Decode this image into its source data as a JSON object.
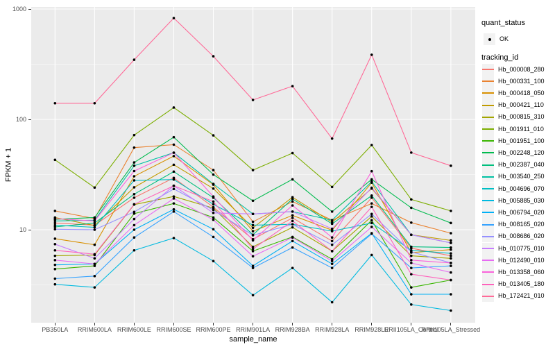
{
  "figure": {
    "background": "#FFFFFF",
    "panel_background": "#EBEBEB",
    "grid_color": "#FFFFFF",
    "tick_color": "#333333",
    "tick_label_color": "#4D4D4D"
  },
  "axes": {
    "x": {
      "label": "sample_name"
    },
    "y": {
      "label": "FPKM + 1",
      "scale": "log10",
      "ticks": [
        {
          "label": "1000",
          "value": 1000
        },
        {
          "label": "100",
          "value": 100
        },
        {
          "label": "10",
          "value": 10
        }
      ]
    }
  },
  "legend": {
    "quant_status": {
      "title": "quant_status",
      "value": "OK",
      "symbol": "black-point"
    },
    "tracking_id": {
      "title": "tracking_id"
    }
  },
  "chart_data": {
    "type": "line",
    "title": "",
    "xlabel": "sample_name",
    "ylabel": "FPKM + 1",
    "y_scale": "log10",
    "ylim": [
      1.4,
      1050
    ],
    "grid": true,
    "legend_position": "right",
    "point_color": "#000000",
    "categories": [
      "PB350LA",
      "RRIM600LA",
      "RRIM600LE",
      "RRIM600SE",
      "RRIM600PE",
      "RRIM901LA",
      "RRIM928BA",
      "RRIM928LA",
      "RRIM928LE",
      "RRII105LA_Control",
      "RRII105LA_Stressed"
    ],
    "series": [
      {
        "name": "Hb_000008_280",
        "color": "#F8766D",
        "values": [
          11.5,
          11.0,
          19.5,
          29.5,
          16.0,
          8.2,
          12.8,
          7.9,
          19.5,
          6.8,
          5.8
        ]
      },
      {
        "name": "Hb_000331_100",
        "color": "#EA8331",
        "values": [
          14.8,
          12.6,
          55.5,
          59.0,
          34.7,
          11.8,
          18.0,
          12.2,
          17.3,
          11.6,
          9.3
        ]
      },
      {
        "name": "Hb_000418_050",
        "color": "#D89000",
        "values": [
          8.3,
          7.3,
          30.5,
          46.5,
          25.6,
          9.7,
          13.5,
          9.9,
          26.7,
          6.2,
          6.6
        ]
      },
      {
        "name": "Hb_000421_110",
        "color": "#C09B00",
        "values": [
          12.9,
          10.9,
          24.2,
          38.8,
          23.6,
          10.4,
          19.7,
          11.7,
          23.6,
          9.0,
          8.0
        ]
      },
      {
        "name": "Hb_000815_310",
        "color": "#A3A500",
        "values": [
          5.8,
          5.9,
          16.9,
          20.0,
          15.7,
          7.0,
          10.5,
          6.4,
          13.2,
          5.8,
          5.5
        ]
      },
      {
        "name": "Hb_001911_010",
        "color": "#7CAE00",
        "values": [
          43.0,
          24.1,
          72.0,
          128.0,
          71.6,
          34.7,
          49.5,
          24.4,
          58.5,
          18.8,
          14.8
        ]
      },
      {
        "name": "Hb_001951_100",
        "color": "#39B600",
        "values": [
          4.4,
          4.7,
          14.0,
          17.3,
          12.9,
          6.4,
          8.6,
          5.4,
          12.2,
          3.0,
          3.5
        ]
      },
      {
        "name": "Hb_002248_120",
        "color": "#00BB4E",
        "values": [
          12.4,
          12.9,
          40.7,
          68.9,
          31.6,
          18.3,
          28.6,
          14.6,
          28.6,
          15.8,
          11.5
        ]
      },
      {
        "name": "Hb_002387_040",
        "color": "#00BF7D",
        "values": [
          10.6,
          11.5,
          21.0,
          33.6,
          19.5,
          9.0,
          19.0,
          11.3,
          20.4,
          7.0,
          6.9
        ]
      },
      {
        "name": "Hb_003540_250",
        "color": "#00C1A3",
        "values": [
          12.0,
          12.2,
          38.0,
          49.9,
          26.0,
          13.9,
          14.6,
          12.2,
          27.3,
          9.0,
          7.6
        ]
      },
      {
        "name": "Hb_004696_070",
        "color": "#00BFC4",
        "values": [
          11.0,
          10.5,
          28.0,
          28.5,
          17.0,
          11.0,
          11.2,
          9.7,
          11.5,
          6.5,
          6.1
        ]
      },
      {
        "name": "Hb_005885_030",
        "color": "#00BAE0",
        "values": [
          3.2,
          3.0,
          6.5,
          8.4,
          5.2,
          2.55,
          4.5,
          2.2,
          5.9,
          2.1,
          1.85
        ]
      },
      {
        "name": "Hb_006794_020",
        "color": "#00B0F6",
        "values": [
          4.8,
          4.9,
          10.0,
          15.3,
          10.1,
          4.7,
          7.9,
          4.9,
          9.3,
          2.6,
          2.6
        ]
      },
      {
        "name": "Hb_008165_020",
        "color": "#35A2FF",
        "values": [
          3.6,
          3.8,
          8.5,
          14.6,
          8.6,
          4.5,
          6.9,
          4.5,
          9.2,
          4.5,
          4.7
        ]
      },
      {
        "name": "Hb_008686_020",
        "color": "#9590FF",
        "values": [
          10.1,
          10.0,
          14.5,
          23.4,
          15.1,
          8.9,
          11.2,
          7.3,
          13.9,
          6.3,
          5.0
        ]
      },
      {
        "name": "Hb_010775_010",
        "color": "#C77CFF",
        "values": [
          7.4,
          5.5,
          12.5,
          25.0,
          14.2,
          13.9,
          14.6,
          10.2,
          24.0,
          9.0,
          7.6
        ]
      },
      {
        "name": "Hb_012490_010",
        "color": "#E76BF3",
        "values": [
          5.3,
          4.9,
          11.0,
          19.2,
          12.3,
          5.75,
          8.5,
          5.2,
          10.6,
          5.0,
          4.1
        ]
      },
      {
        "name": "Hb_013358_060",
        "color": "#FA62DB",
        "values": [
          12.6,
          12.0,
          34.0,
          49.9,
          20.0,
          8.0,
          16.6,
          8.5,
          33.9,
          5.3,
          5.0
        ]
      },
      {
        "name": "Hb_013405_180",
        "color": "#FF62BC",
        "values": [
          6.5,
          6.0,
          17.0,
          25.0,
          18.0,
          6.7,
          12.0,
          6.4,
          16.1,
          3.95,
          3.5
        ]
      },
      {
        "name": "Hb_172421_010",
        "color": "#FF6A98",
        "values": [
          140,
          140,
          347,
          828,
          373,
          150,
          200,
          67,
          385,
          50,
          38
        ]
      }
    ]
  }
}
